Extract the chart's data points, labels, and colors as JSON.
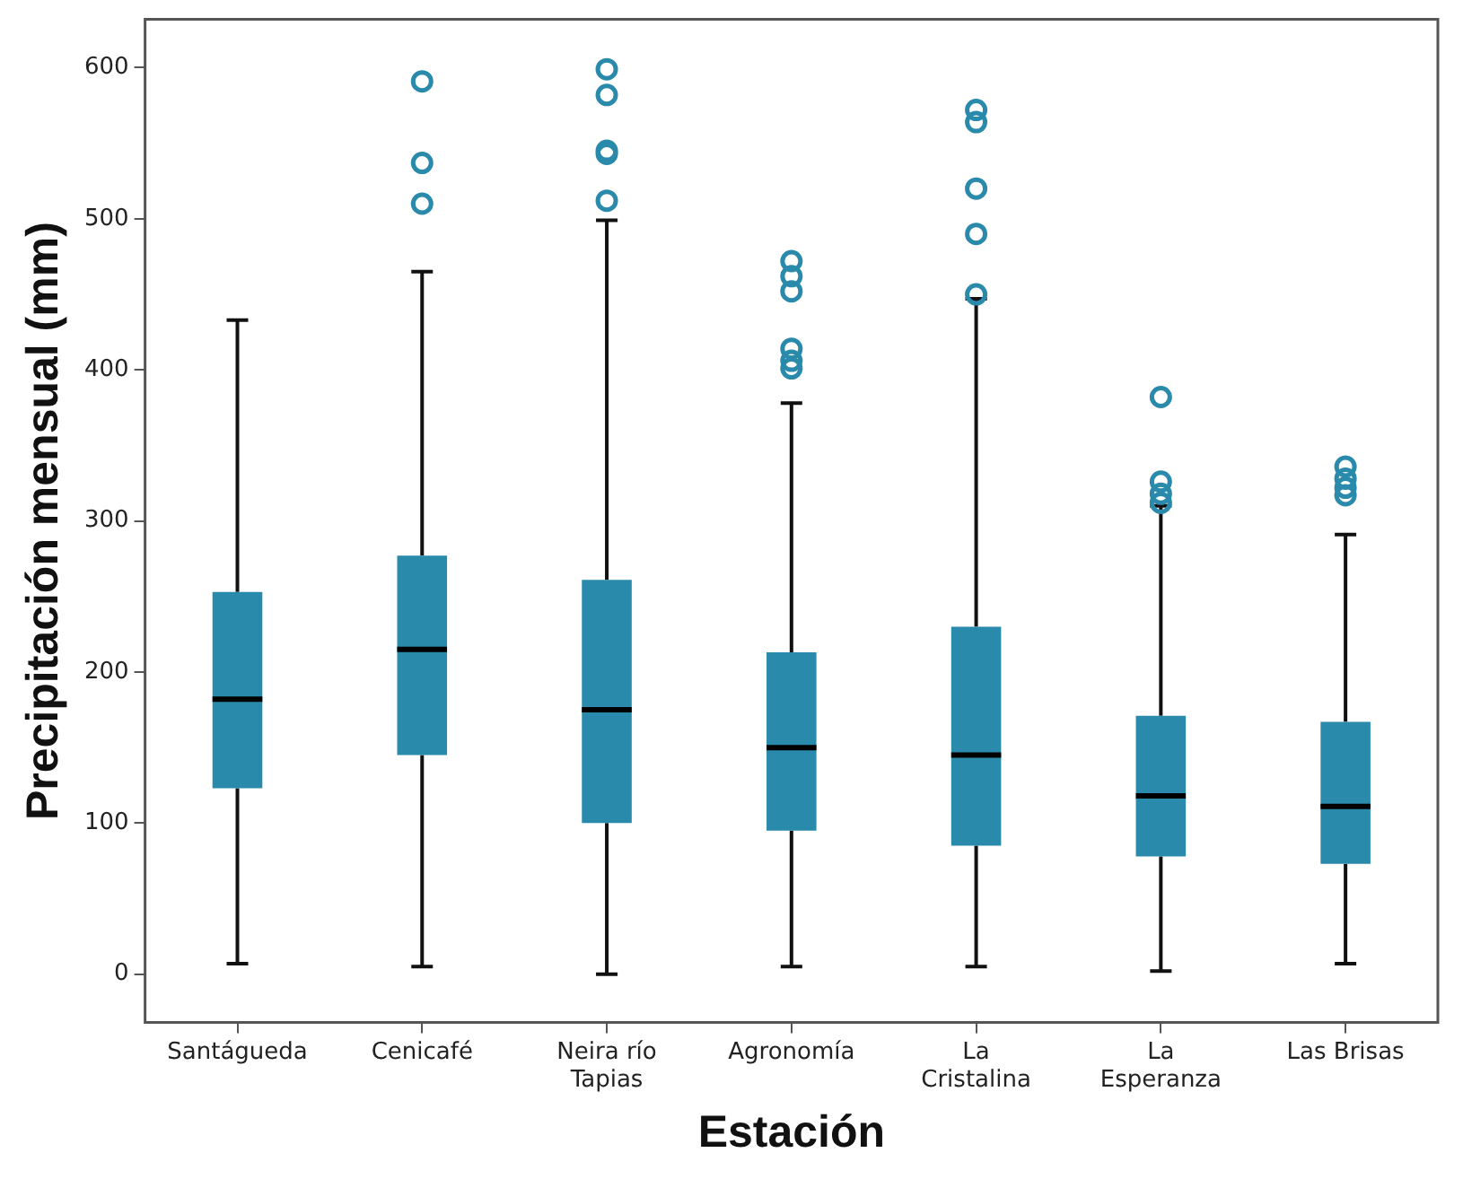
{
  "chart_data": {
    "type": "box",
    "xlabel": "Estación",
    "ylabel": "Precipitación mensual (mm)",
    "categories": [
      "Santágueda",
      "Cenicafé",
      "Neira río Tapias",
      "Agronomía",
      "La Cristalina",
      "La Esperanza",
      "Las Brisas"
    ],
    "color": "#2a8aab",
    "boxes": [
      {
        "low": 7,
        "q1": 123,
        "median": 182,
        "q3": 253,
        "high": 433
      },
      {
        "low": 5,
        "q1": 145,
        "median": 215,
        "q3": 277,
        "high": 465,
        "outliers": [
          510,
          537,
          591
        ]
      },
      {
        "low": 0,
        "q1": 100,
        "median": 175,
        "q3": 261,
        "high": 499,
        "outliers": [
          512,
          543,
          545,
          582,
          599
        ]
      },
      {
        "low": 5,
        "q1": 95,
        "median": 150,
        "q3": 213,
        "high": 378,
        "outliers": [
          401,
          406,
          414,
          452,
          462,
          472
        ]
      },
      {
        "low": 5,
        "q1": 85,
        "median": 145,
        "q3": 230,
        "high": 447,
        "outliers": [
          450,
          490,
          520,
          564,
          572
        ]
      },
      {
        "low": 2,
        "q1": 78,
        "median": 118,
        "q3": 171,
        "high": 310,
        "outliers": [
          312,
          318,
          326,
          382
        ]
      },
      {
        "low": 7,
        "q1": 73,
        "median": 111,
        "q3": 167,
        "high": 291,
        "outliers": [
          317,
          322,
          328,
          336
        ]
      }
    ],
    "ylim": [
      -32,
      632
    ],
    "yticks": [
      0,
      100,
      200,
      300,
      400,
      500,
      600
    ],
    "grid": false,
    "legend": false
  }
}
